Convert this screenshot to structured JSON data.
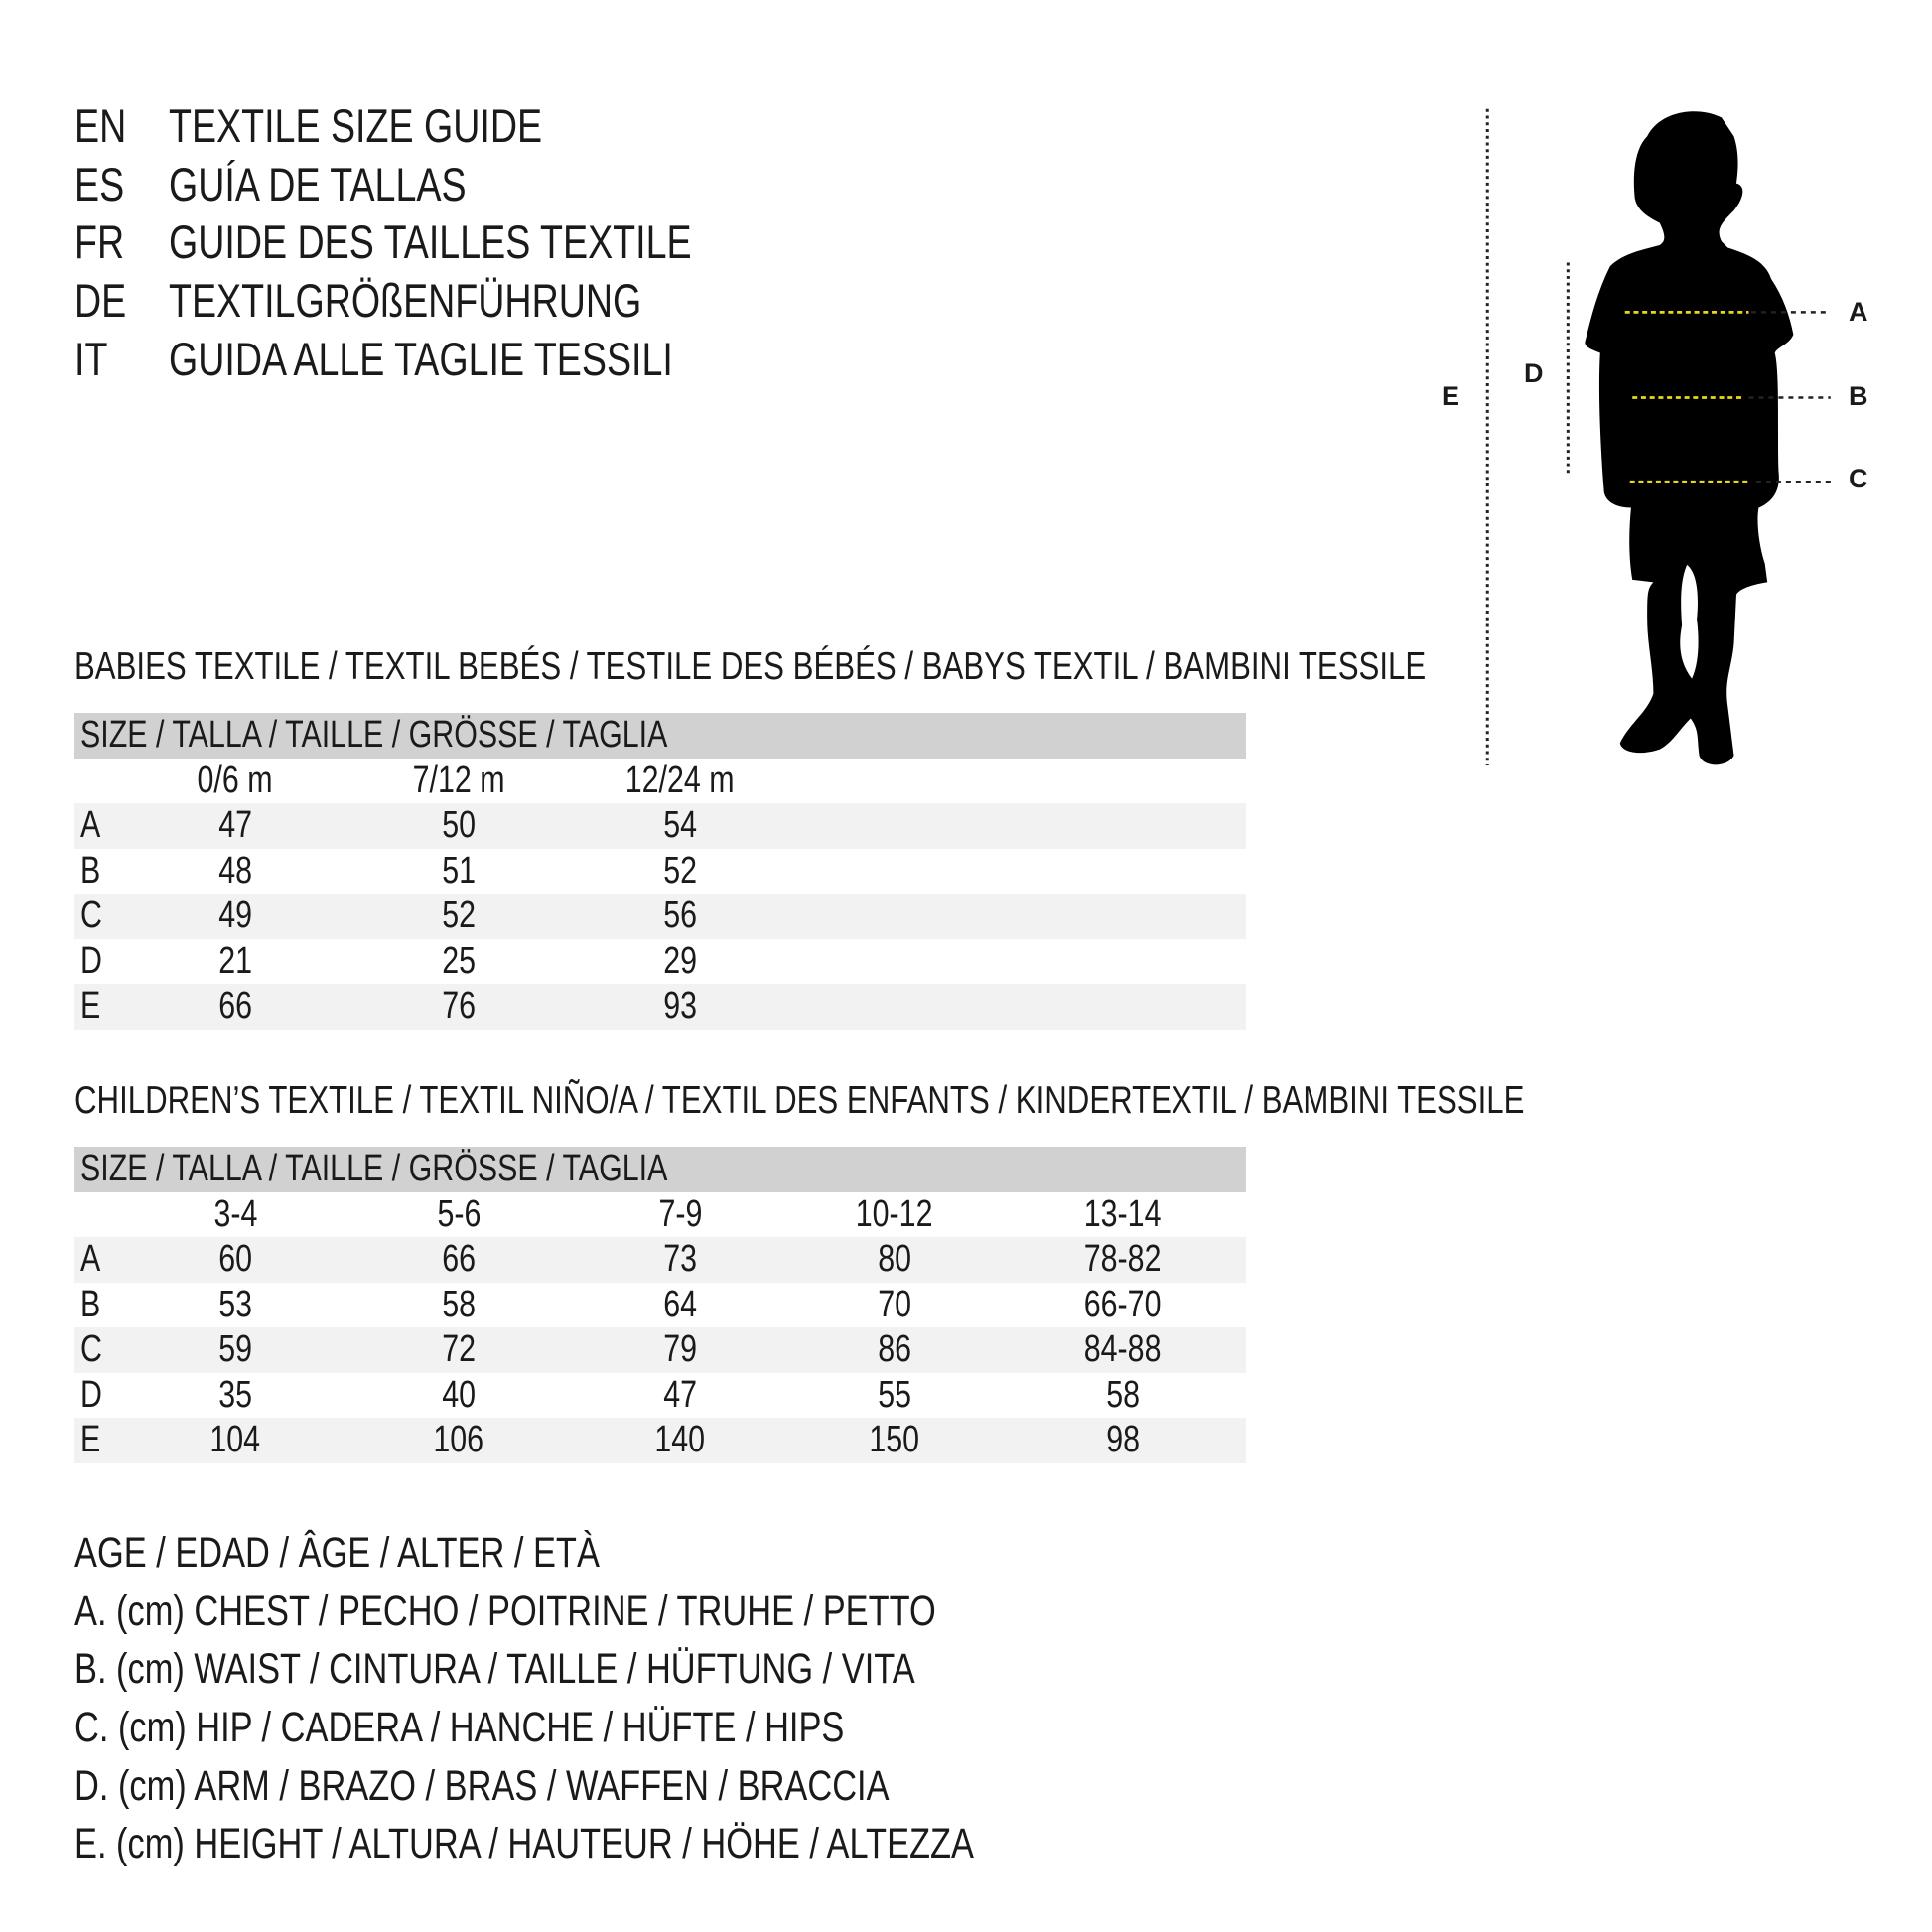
{
  "titles": [
    {
      "code": "EN",
      "text": "TEXTILE SIZE GUIDE"
    },
    {
      "code": "ES",
      "text": "GUÍA DE TALLAS"
    },
    {
      "code": "FR",
      "text": "GUIDE DES TAILLES TEXTILE"
    },
    {
      "code": "DE",
      "text": "TEXTILGRÖßENFÜHRUNG"
    },
    {
      "code": "IT",
      "text": "GUIDA ALLE TAGLIE TESSILI"
    }
  ],
  "babies": {
    "heading": "BABIES TEXTILE / TEXTIL BEBÉS / TESTILE DES BÉBÉS / BABYS TEXTIL / BAMBINI TESSILE",
    "size_header": "SIZE / TALLA / TAILLE / GRÖSSE / TAGLIA",
    "columns": [
      "0/6 m",
      "7/12 m",
      "12/24 m"
    ],
    "rows": [
      {
        "label": "A",
        "values": [
          "47",
          "50",
          "54"
        ]
      },
      {
        "label": "B",
        "values": [
          "48",
          "51",
          "52"
        ]
      },
      {
        "label": "C",
        "values": [
          "49",
          "52",
          "56"
        ]
      },
      {
        "label": "D",
        "values": [
          "21",
          "25",
          "29"
        ]
      },
      {
        "label": "E",
        "values": [
          "66",
          "76",
          "93"
        ]
      }
    ]
  },
  "children": {
    "heading": "CHILDREN’S TEXTILE / TEXTIL NIÑO/A / TEXTIL DES ENFANTS / KINDERTEXTIL / BAMBINI TESSILE",
    "size_header": "SIZE / TALLA / TAILLE / GRÖSSE / TAGLIA",
    "columns": [
      "3-4",
      "5-6",
      "7-9",
      "10-12",
      "13-14"
    ],
    "rows": [
      {
        "label": "A",
        "values": [
          "60",
          "66",
          "73",
          "80",
          "78-82"
        ]
      },
      {
        "label": "B",
        "values": [
          "53",
          "58",
          "64",
          "70",
          "66-70"
        ]
      },
      {
        "label": "C",
        "values": [
          "59",
          "72",
          "79",
          "86",
          "84-88"
        ]
      },
      {
        "label": "D",
        "values": [
          "35",
          "40",
          "47",
          "55",
          "58"
        ]
      },
      {
        "label": "E",
        "values": [
          "104",
          "106",
          "140",
          "150",
          "98"
        ]
      }
    ]
  },
  "legend": [
    "AGE / EDAD / ÂGE / ALTER / ETÀ",
    "A. (cm) CHEST / PECHO / POITRINE / TRUHE / PETTO",
    "B. (cm) WAIST / CINTURA / TAILLE / HÜFTUNG / VITA",
    "C. (cm) HIP / CADERA / HANCHE / HÜFTE / HIPS",
    "D. (cm) ARM / BRAZO / BRAS / WAFFEN / BRACCIA",
    "E. (cm) HEIGHT / ALTURA / HAUTEUR / HÖHE / ALTEZZA"
  ],
  "figure": {
    "labels": {
      "A": "A",
      "B": "B",
      "C": "C",
      "D": "D",
      "E": "E"
    },
    "colors": {
      "silhouette": "#000000",
      "measure_line": "#e8d81c",
      "guide_line": "#222222",
      "header_bg": "#d1d1d1",
      "stripe_bg": "#f2f2f2"
    }
  }
}
